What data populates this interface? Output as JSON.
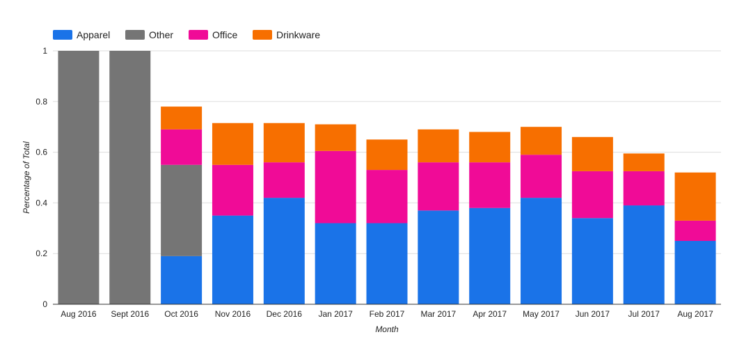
{
  "chart_data": {
    "type": "bar",
    "stacked": true,
    "title": "",
    "xlabel": "Month",
    "ylabel": "Percentage of Total",
    "ylim": [
      0,
      1
    ],
    "yticks": [
      "0",
      "0.2",
      "0.4",
      "0.6",
      "0.8",
      "1"
    ],
    "ytick_values": [
      0,
      0.2,
      0.4,
      0.6,
      0.8,
      1
    ],
    "legend_position": "top-left",
    "grid": true,
    "categories": [
      "Aug 2016",
      "Sept 2016",
      "Oct 2016",
      "Nov 2016",
      "Dec 2016",
      "Jan 2017",
      "Feb 2017",
      "Mar 2017",
      "Apr 2017",
      "May 2017",
      "Jun 2017",
      "Jul 2017",
      "Aug 2017"
    ],
    "series": [
      {
        "name": "Apparel",
        "color": "#1a73e8",
        "values": [
          0,
          0,
          0.19,
          0.35,
          0.42,
          0.32,
          0.32,
          0.37,
          0.38,
          0.42,
          0.34,
          0.39,
          0.25
        ]
      },
      {
        "name": "Other",
        "color": "#757575",
        "values": [
          1,
          1,
          0.36,
          0,
          0,
          0,
          0,
          0,
          0,
          0,
          0,
          0,
          0
        ]
      },
      {
        "name": "Office",
        "color": "#f00b97",
        "values": [
          0,
          0,
          0.14,
          0.2,
          0.14,
          0.285,
          0.21,
          0.19,
          0.18,
          0.17,
          0.185,
          0.135,
          0.08
        ]
      },
      {
        "name": "Drinkware",
        "color": "#f76f00",
        "values": [
          0,
          0,
          0.09,
          0.165,
          0.155,
          0.105,
          0.12,
          0.13,
          0.12,
          0.11,
          0.135,
          0.07,
          0.19
        ]
      }
    ]
  }
}
